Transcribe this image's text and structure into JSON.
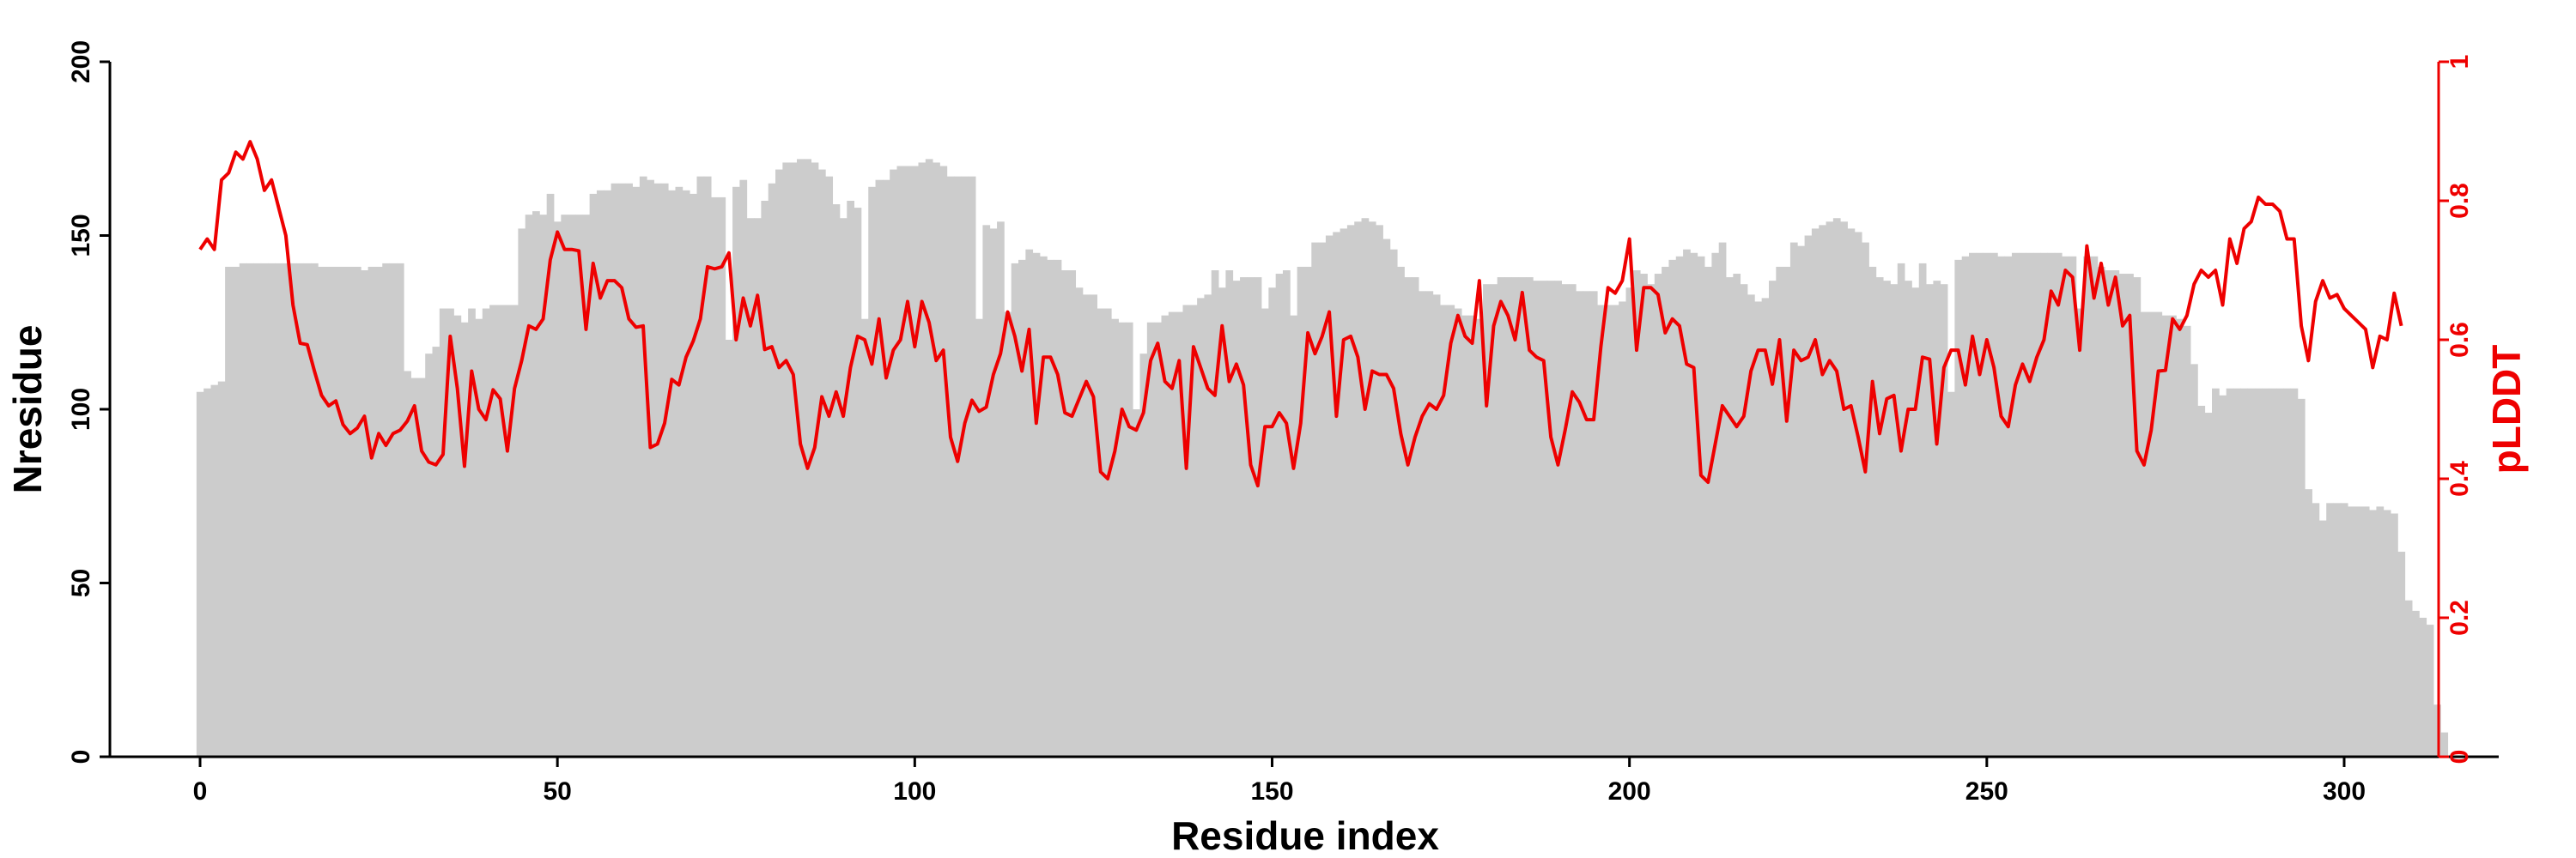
{
  "chart_data": {
    "type": "bar+line",
    "title": "",
    "xlabel": "Residue index",
    "ylabel": "Nresidue",
    "y2label": "pLDDT",
    "xlim": [
      -12,
      323
    ],
    "ylim": [
      0,
      200
    ],
    "y2lim": [
      0,
      1
    ],
    "xticks": [
      0,
      50,
      100,
      150,
      200,
      250,
      300
    ],
    "yticks": [
      0,
      50,
      100,
      150,
      200
    ],
    "y2ticks": [
      0,
      0.2,
      0.4,
      0.6,
      0.8,
      1
    ],
    "grid": false,
    "legend": "none",
    "colors": {
      "bars": "#cccccc",
      "line": "#ee0000",
      "axis": "#000000",
      "y2axis": "#ee0000"
    },
    "bar_series": {
      "name": "",
      "x_start": 0,
      "values": [
        105,
        106,
        107,
        108,
        141,
        141,
        142,
        142,
        142,
        142,
        142,
        142,
        142,
        142,
        142,
        142,
        142,
        141,
        141,
        141,
        141,
        141,
        141,
        140,
        141,
        141,
        142,
        142,
        142,
        111,
        109,
        109,
        116,
        118,
        129,
        129,
        127,
        125,
        129,
        126,
        129,
        130,
        130,
        130,
        130,
        152,
        156,
        157,
        156,
        162,
        154,
        156,
        156,
        156,
        156,
        162,
        163,
        163,
        165,
        165,
        165,
        164,
        167,
        166,
        165,
        165,
        163,
        164,
        163,
        162,
        167,
        167,
        161,
        161,
        120,
        164,
        166,
        155,
        155,
        160,
        165,
        169,
        171,
        171,
        172,
        172,
        171,
        169,
        167,
        159,
        155,
        160,
        158,
        126,
        164,
        166,
        166,
        169,
        170,
        170,
        170,
        171,
        172,
        171,
        170,
        167,
        167,
        167,
        167,
        126,
        153,
        152,
        154,
        128,
        142,
        143,
        146,
        145,
        144,
        143,
        143,
        140,
        140,
        135,
        133,
        133,
        129,
        129,
        126,
        125,
        125,
        100,
        116,
        125,
        125,
        127,
        128,
        128,
        130,
        130,
        132,
        133,
        140,
        135,
        140,
        137,
        138,
        138,
        138,
        129,
        135,
        139,
        140,
        127,
        141,
        141,
        148,
        148,
        150,
        151,
        152,
        153,
        154,
        155,
        154,
        153,
        149,
        146,
        141,
        138,
        138,
        134,
        134,
        133,
        130,
        130,
        129,
        127,
        127,
        126,
        136,
        136,
        138,
        138,
        138,
        138,
        138,
        137,
        137,
        137,
        137,
        136,
        136,
        134,
        134,
        134,
        130,
        130,
        130,
        131,
        135,
        140,
        139,
        136,
        139,
        141,
        143,
        144,
        146,
        145,
        144,
        141,
        145,
        148,
        138,
        139,
        136,
        133,
        131,
        132,
        137,
        141,
        141,
        148,
        147,
        150,
        152,
        153,
        154,
        155,
        154,
        152,
        151,
        148,
        141,
        138,
        137,
        136,
        142,
        137,
        135,
        142,
        136,
        137,
        136,
        105,
        143,
        144,
        145,
        145,
        145,
        145,
        144,
        144,
        145,
        145,
        145,
        145,
        145,
        145,
        145,
        144,
        144,
        129,
        144,
        144,
        141,
        140,
        140,
        139,
        139,
        138,
        128,
        128,
        128,
        127,
        127,
        126,
        124,
        113,
        101,
        99,
        106,
        104,
        106,
        106,
        106,
        106,
        106,
        106,
        106,
        106,
        106,
        106,
        103,
        77,
        73,
        68,
        73,
        73,
        73,
        72,
        72,
        72,
        71,
        72,
        71,
        70,
        59,
        45,
        42,
        40,
        38,
        15,
        7
      ]
    },
    "line_series": {
      "name": "",
      "x_start": 0,
      "values": [
        0.73,
        0.745,
        0.73,
        0.83,
        0.84,
        0.87,
        0.86,
        0.885,
        0.86,
        0.815,
        0.83,
        0.79,
        0.75,
        0.65,
        0.595,
        0.593,
        0.555,
        0.52,
        0.505,
        0.512,
        0.478,
        0.465,
        0.473,
        0.49,
        0.43,
        0.465,
        0.448,
        0.465,
        0.47,
        0.483,
        0.505,
        0.44,
        0.424,
        0.42,
        0.435,
        0.605,
        0.53,
        0.418,
        0.555,
        0.5,
        0.485,
        0.528,
        0.515,
        0.44,
        0.53,
        0.57,
        0.62,
        0.615,
        0.63,
        0.715,
        0.755,
        0.73,
        0.73,
        0.728,
        0.615,
        0.71,
        0.66,
        0.685,
        0.685,
        0.675,
        0.63,
        0.618,
        0.62,
        0.445,
        0.45,
        0.48,
        0.543,
        0.535,
        0.575,
        0.598,
        0.63,
        0.705,
        0.702,
        0.705,
        0.725,
        0.6,
        0.66,
        0.62,
        0.664,
        0.586,
        0.59,
        0.56,
        0.57,
        0.55,
        0.45,
        0.415,
        0.445,
        0.518,
        0.49,
        0.525,
        0.49,
        0.56,
        0.605,
        0.6,
        0.565,
        0.63,
        0.545,
        0.585,
        0.6,
        0.655,
        0.59,
        0.655,
        0.625,
        0.57,
        0.585,
        0.46,
        0.425,
        0.48,
        0.513,
        0.497,
        0.503,
        0.55,
        0.58,
        0.64,
        0.605,
        0.555,
        0.615,
        0.48,
        0.575,
        0.575,
        0.55,
        0.495,
        0.49,
        0.515,
        0.54,
        0.518,
        0.41,
        0.4,
        0.44,
        0.5,
        0.475,
        0.47,
        0.495,
        0.57,
        0.595,
        0.54,
        0.53,
        0.57,
        0.415,
        0.59,
        0.56,
        0.53,
        0.52,
        0.62,
        0.54,
        0.565,
        0.535,
        0.42,
        0.39,
        0.475,
        0.475,
        0.495,
        0.48,
        0.415,
        0.48,
        0.61,
        0.58,
        0.605,
        0.64,
        0.49,
        0.6,
        0.605,
        0.575,
        0.5,
        0.555,
        0.55,
        0.55,
        0.53,
        0.465,
        0.42,
        0.46,
        0.49,
        0.508,
        0.5,
        0.52,
        0.595,
        0.635,
        0.605,
        0.595,
        0.685,
        0.505,
        0.62,
        0.655,
        0.635,
        0.6,
        0.668,
        0.585,
        0.575,
        0.57,
        0.46,
        0.42,
        0.47,
        0.525,
        0.51,
        0.485,
        0.485,
        0.59,
        0.675,
        0.667,
        0.685,
        0.745,
        0.585,
        0.675,
        0.675,
        0.665,
        0.61,
        0.63,
        0.62,
        0.565,
        0.56,
        0.405,
        0.395,
        0.45,
        0.505,
        0.49,
        0.475,
        0.49,
        0.555,
        0.585,
        0.585,
        0.536,
        0.6,
        0.483,
        0.585,
        0.57,
        0.575,
        0.6,
        0.55,
        0.57,
        0.555,
        0.5,
        0.505,
        0.46,
        0.41,
        0.54,
        0.465,
        0.515,
        0.52,
        0.44,
        0.5,
        0.5,
        0.575,
        0.572,
        0.45,
        0.56,
        0.585,
        0.585,
        0.535,
        0.605,
        0.55,
        0.6,
        0.56,
        0.49,
        0.475,
        0.535,
        0.565,
        0.54,
        0.575,
        0.6,
        0.67,
        0.65,
        0.7,
        0.69,
        0.585,
        0.735,
        0.66,
        0.71,
        0.65,
        0.69,
        0.62,
        0.635,
        0.44,
        0.42,
        0.47,
        0.555,
        0.556,
        0.63,
        0.615,
        0.635,
        0.68,
        0.7,
        0.69,
        0.7,
        0.65,
        0.745,
        0.71,
        0.76,
        0.77,
        0.805,
        0.795,
        0.795,
        0.785,
        0.745,
        0.745,
        0.62,
        0.57,
        0.655,
        0.685,
        0.66,
        0.665,
        0.645,
        0.635,
        0.625,
        0.615,
        0.56,
        0.605,
        0.6,
        0.667,
        0.62
      ]
    }
  }
}
